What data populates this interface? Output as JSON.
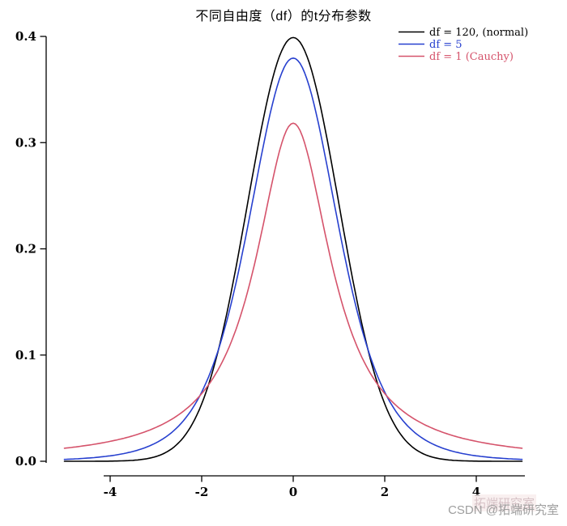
{
  "title": "不同自由度（df）的t分布参数",
  "watermark": {
    "text": "CSDN @拓端研究室",
    "echo": "拓端研究室"
  },
  "chart_data": {
    "type": "line",
    "title": "不同自由度（df）的t分布参数",
    "xlabel": "",
    "ylabel": "",
    "x_range": [
      -5,
      5
    ],
    "y_range": [
      0,
      0.4
    ],
    "x_ticks": [
      -4,
      -2,
      0,
      2,
      4
    ],
    "x_tick_labels": [
      "-4",
      "-2",
      "0",
      "2",
      "4"
    ],
    "y_ticks": [
      0,
      0.1,
      0.2,
      0.3,
      0.4
    ],
    "y_tick_labels": [
      "0.0",
      "0.1",
      "0.2",
      "0.3",
      "0.4"
    ],
    "grid": false,
    "legend_position": "top-right",
    "samples_x": [
      0,
      0.5,
      1,
      1.5,
      2,
      2.5,
      3,
      3.5,
      4,
      4.5,
      5
    ],
    "symmetric": true,
    "series": [
      {
        "name": "df = 120, (normal)",
        "df": 120,
        "dist": "normal",
        "color": "#000000",
        "peak": 0.3989,
        "samples_y": [
          0.3989,
          0.3521,
          0.242,
          0.1295,
          0.054,
          0.0175,
          0.0044,
          0.0009,
          0.0001,
          0.0,
          0.0
        ]
      },
      {
        "name": "df = 5",
        "df": 5,
        "dist": "t",
        "color": "#2740cf",
        "peak": 0.3796,
        "samples_y": [
          0.3796,
          0.3279,
          0.2197,
          0.1245,
          0.0651,
          0.0333,
          0.0173,
          0.0092,
          0.0051,
          0.003,
          0.0018
        ]
      },
      {
        "name": "df = 1 (Cauchy)",
        "df": 1,
        "dist": "cauchy",
        "color": "#d5536b",
        "peak": 0.3183,
        "samples_y": [
          0.3183,
          0.2546,
          0.1592,
          0.0979,
          0.0637,
          0.0439,
          0.0318,
          0.024,
          0.0187,
          0.015,
          0.0122
        ]
      }
    ]
  }
}
